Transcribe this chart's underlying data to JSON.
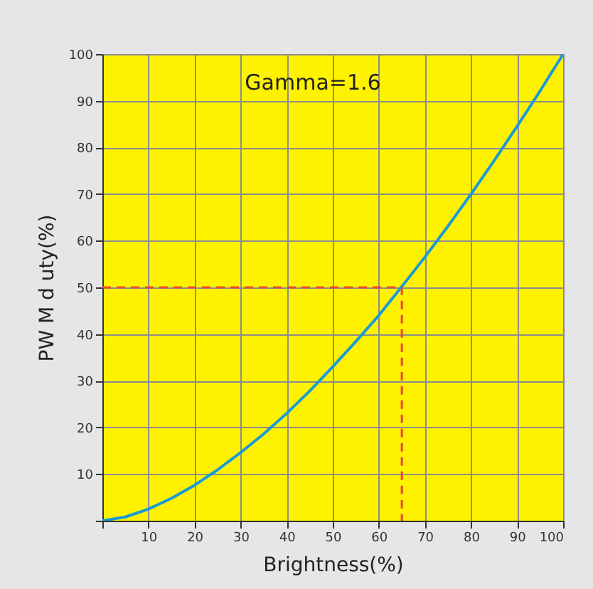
{
  "chart_data": {
    "type": "line",
    "xlabel": "Brightness(%)",
    "ylabel": "PW M d uty(%)",
    "annotations": [
      "Gamma=1.6"
    ],
    "series": [
      {
        "color": "#1a9ad6",
        "x": [
          0,
          5,
          10,
          15,
          20,
          25,
          30,
          35,
          40,
          45,
          50,
          55,
          60,
          65,
          70,
          75,
          80,
          85,
          90,
          95,
          100
        ],
        "values": [
          0,
          0.8,
          2.5,
          4.8,
          7.6,
          10.9,
          14.6,
          18.6,
          23,
          27.8,
          33,
          38.4,
          44,
          50.2,
          56.5,
          63.1,
          70,
          77.1,
          84.5,
          92.1,
          100
        ]
      },
      {
        "type": "line",
        "line_style": "dashed",
        "color": "#e8502a",
        "x": [
          0,
          65,
          65
        ],
        "values": [
          50,
          50,
          0
        ]
      }
    ],
    "xlim": [
      0,
      100
    ],
    "ylim": [
      0,
      100
    ],
    "xticks": [
      {
        "value": 0,
        "label": null
      },
      10,
      20,
      30,
      40,
      50,
      60,
      70,
      80,
      90,
      100
    ],
    "yticks": [
      {
        "value": 0,
        "label": null
      },
      10,
      20,
      30,
      40,
      50,
      60,
      70,
      80,
      90,
      100
    ],
    "grid": true
  }
}
